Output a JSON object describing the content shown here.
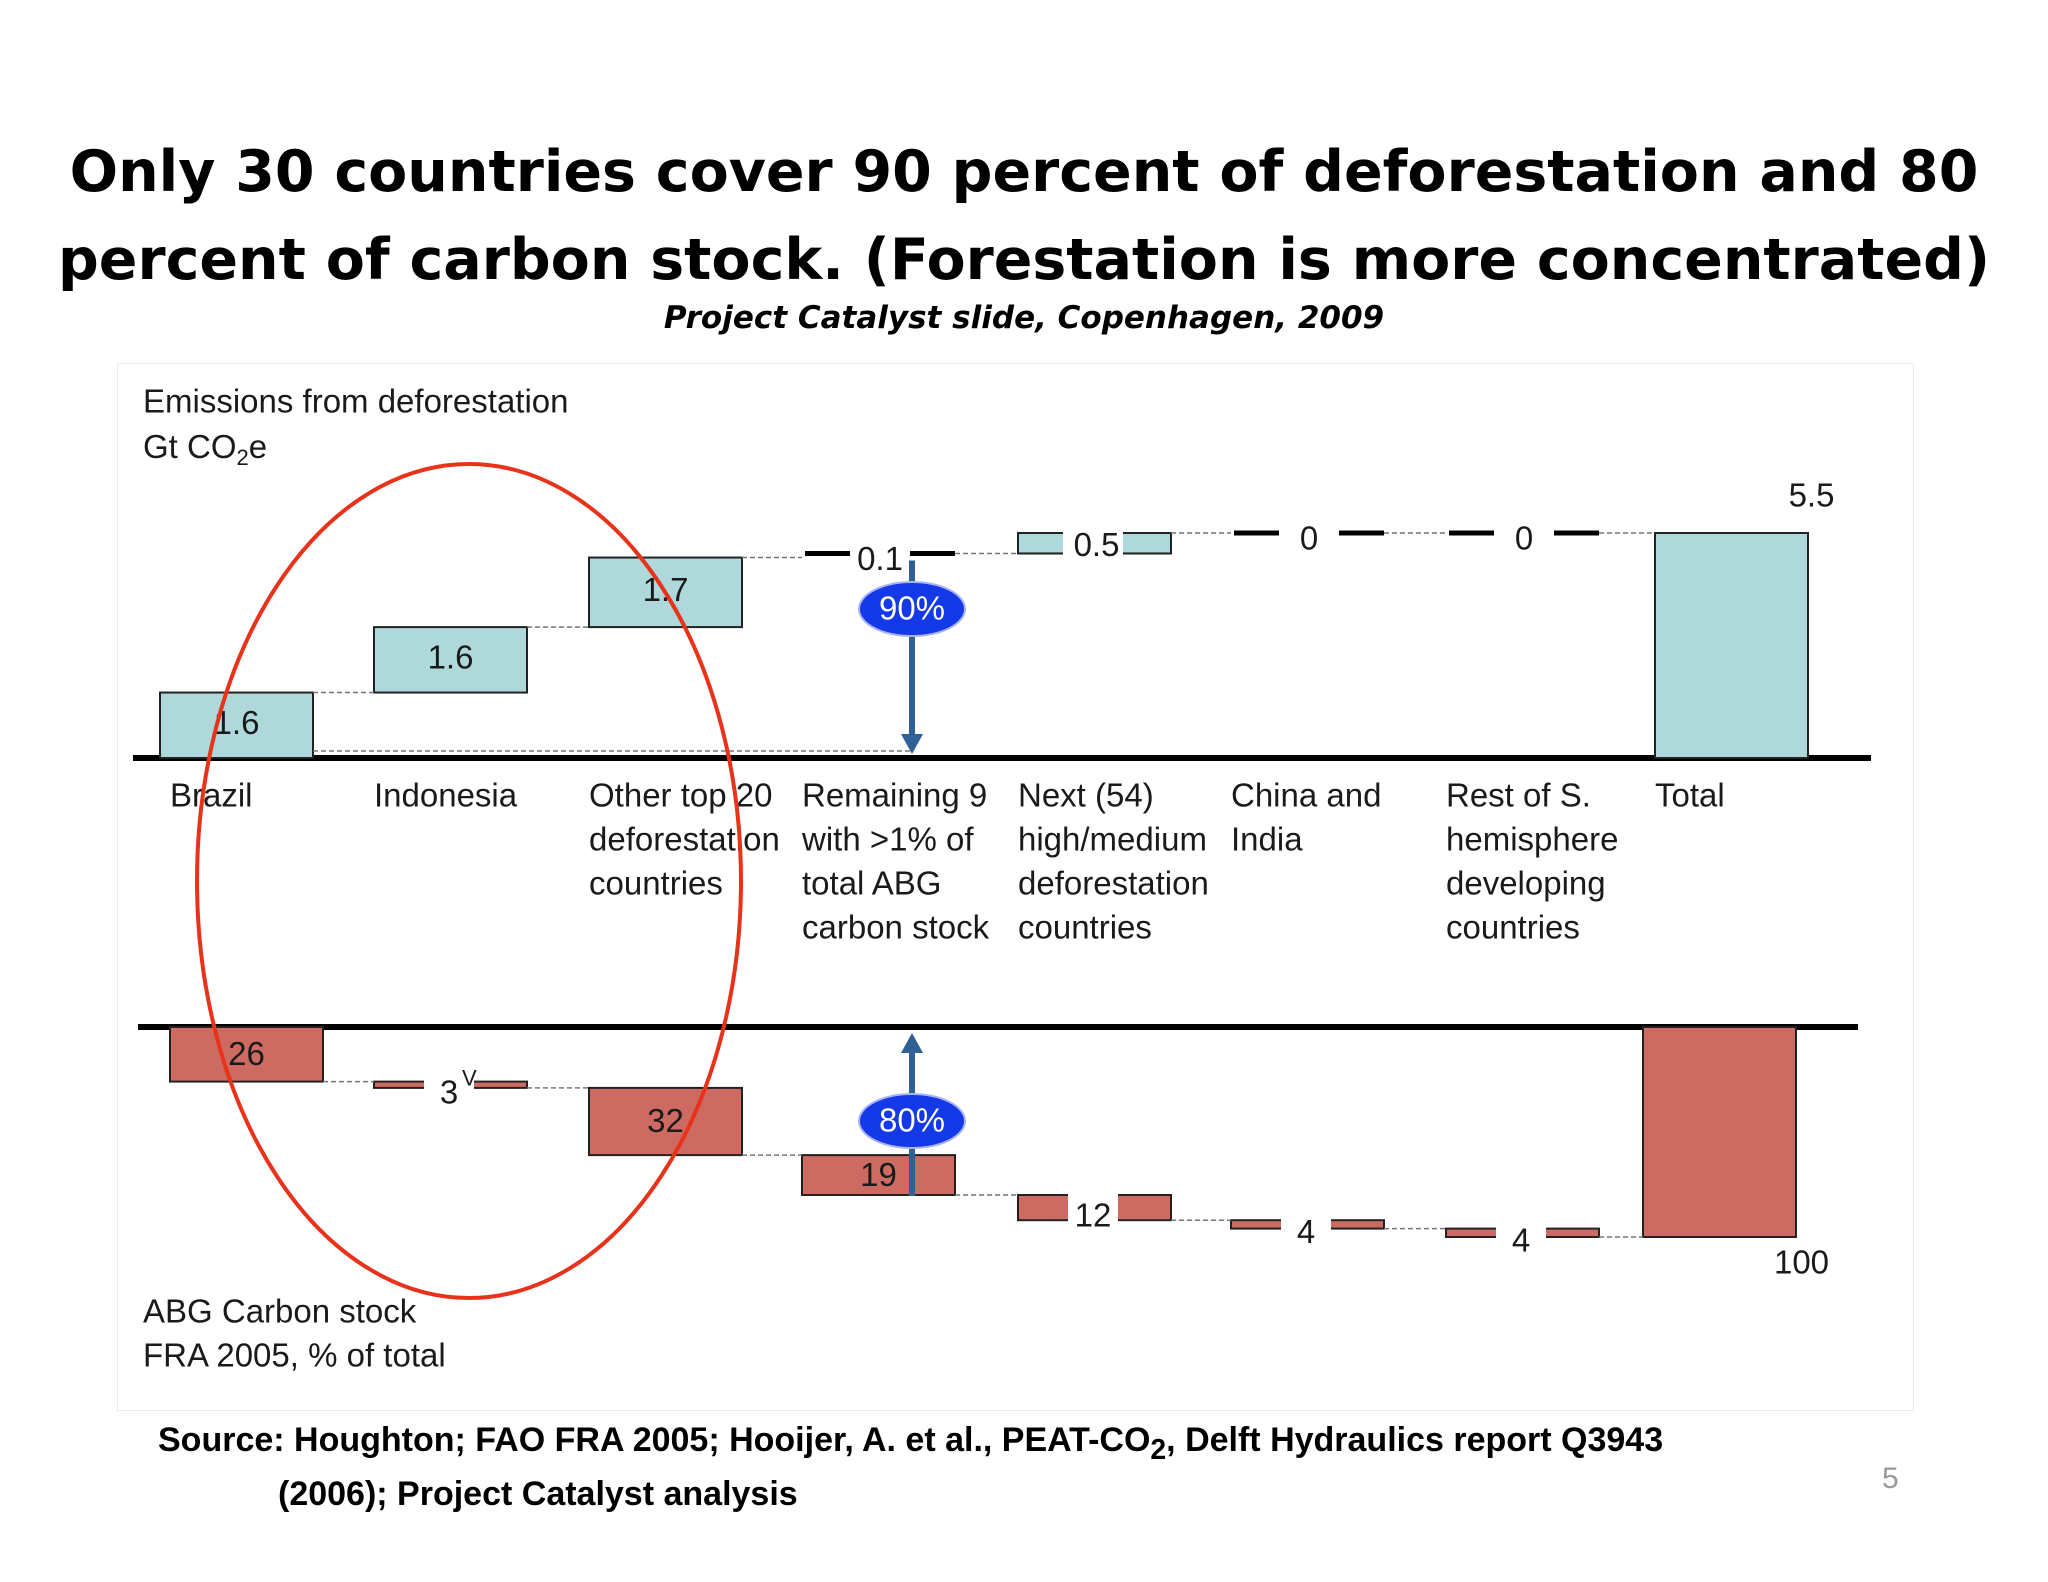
{
  "title": {
    "line1": "Only 30 countries cover 90 percent of deforestation and 80",
    "line2": "percent of carbon stock.  (Forestation is more concentrated)"
  },
  "subtitle": "Project Catalyst slide, Copenhagen, 2009",
  "source": {
    "line1_prefix": "Source:  Houghton; FAO FRA 2005; Hooijer, A. et al., PEAT-CO",
    "line1_sub": "2",
    "line1_suffix": ", Delft Hydraulics report Q3943",
    "line2": "(2006); Project Catalyst analysis"
  },
  "page_number": "5",
  "colors": {
    "emissions_bar": "#aed8da",
    "carbon_bar": "#cd6b63",
    "percent_badge": "#1339e8",
    "arrow": "#2f6096",
    "circle": "#e8321a"
  },
  "chart_data": {
    "type": "waterfall",
    "categories": [
      [
        "Brazil"
      ],
      [
        "Indonesia"
      ],
      [
        "Other top 20",
        "deforestation",
        "countries"
      ],
      [
        "Remaining 9",
        "with >1% of",
        "total ABG",
        "carbon stock"
      ],
      [
        "Next (54)",
        "high/medium",
        "deforestation",
        "countries"
      ],
      [
        "China and",
        "India"
      ],
      [
        "Rest of S.",
        "hemisphere",
        "developing",
        "countries"
      ],
      [
        "Total"
      ]
    ],
    "emissions": {
      "label_line1": "Emissions from deforestation",
      "label_line2_prefix": "Gt CO",
      "label_line2_sub": "2",
      "label_line2_suffix": "e",
      "values": [
        1.6,
        1.6,
        1.7,
        0.1,
        0.5,
        0,
        0,
        5.5
      ],
      "value_labels": [
        "1.6",
        "1.6",
        "1.7",
        "0.1",
        "0.5",
        "0",
        "0",
        "5.5"
      ],
      "bracket": "90%"
    },
    "carbon_stock": {
      "label_line1": "ABG Carbon stock",
      "label_line2": "FRA 2005, % of total",
      "values": [
        26,
        3,
        32,
        19,
        12,
        4,
        4,
        100
      ],
      "value_labels": [
        "26",
        "3",
        "32",
        "19",
        "12",
        "4",
        "4",
        "100"
      ],
      "footnote_mark": "V",
      "bracket": "80%"
    }
  }
}
